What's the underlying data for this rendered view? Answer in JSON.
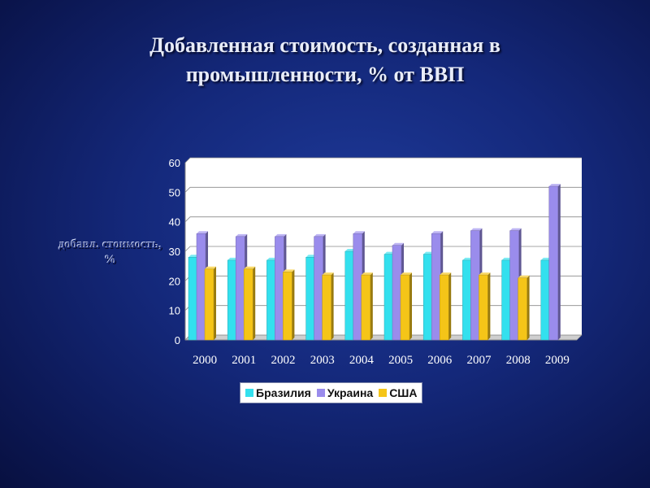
{
  "slide": {
    "title": "Добавленная стоимость, созданная в\nпромышленности, % от ВВП"
  },
  "colors": {
    "background": "#14287a",
    "brazil": "#33e0ee",
    "ukraine": "#9a8cec",
    "usa": "#f5c518"
  },
  "chart_data": {
    "type": "bar",
    "title": "",
    "xlabel": "",
    "ylabel": "добавл. стоимость, %",
    "ylim": [
      0,
      60
    ],
    "yticks": [
      0,
      10,
      20,
      30,
      40,
      50,
      60
    ],
    "grid": true,
    "legend_position": "bottom",
    "categories": [
      "2000",
      "2001",
      "2002",
      "2003",
      "2004",
      "2005",
      "2006",
      "2007",
      "2008",
      "2009"
    ],
    "series": [
      {
        "name": "Бразилия",
        "color": "#33e0ee",
        "values": [
          28,
          27,
          27,
          28,
          30,
          29,
          29,
          27,
          27,
          27
        ]
      },
      {
        "name": "Украина",
        "color": "#9a8cec",
        "values": [
          36,
          35,
          35,
          35,
          36,
          32,
          36,
          37,
          37,
          52
        ]
      },
      {
        "name": "США",
        "color": "#f5c518",
        "values": [
          24,
          24,
          23,
          22,
          22,
          22,
          22,
          22,
          21,
          null
        ]
      }
    ]
  }
}
